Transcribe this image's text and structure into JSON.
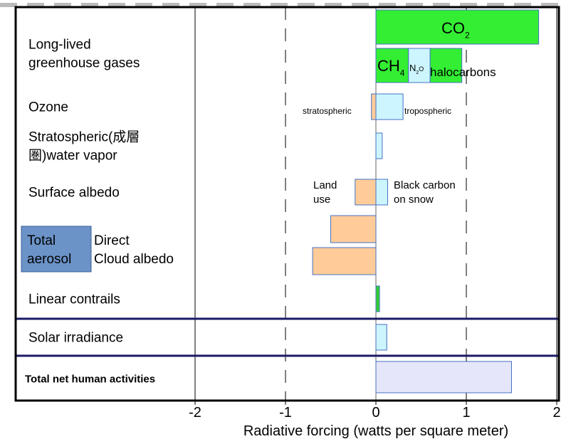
{
  "chart_data": {
    "type": "bar",
    "orientation": "horizontal",
    "xlabel": "Radiative forcing (watts per square meter)",
    "xlim": [
      -2,
      2
    ],
    "xticks": [
      "-2",
      "-1",
      "0",
      "1",
      "2"
    ],
    "x_gridlines": {
      "solid": [
        -2,
        2
      ],
      "dashed": [
        -1,
        1
      ]
    },
    "categories": [
      {
        "label_lines": [
          "Long-lived",
          "greenhouse gases"
        ]
      },
      {
        "label_lines": [
          "Ozone"
        ]
      },
      {
        "label_lines": [
          "Stratospheric(成層",
          "圏)water vapor"
        ]
      },
      {
        "label_lines": [
          "Surface albedo"
        ]
      },
      {
        "label_lines": [
          "Direct",
          "Cloud albedo"
        ],
        "group_label_lines": [
          "Total",
          "aerosol"
        ]
      },
      {
        "label_lines": [
          "Linear contrails"
        ]
      },
      {
        "label_lines": [
          "Solar irradiance"
        ]
      },
      {
        "label_lines": [
          "Total net human activities"
        ],
        "bold": true
      }
    ],
    "bars": [
      {
        "category": 0,
        "start": 0,
        "end": 1.8,
        "color": "#33ee33",
        "label": "CO",
        "sub": "2"
      },
      {
        "category": 0,
        "start": 0,
        "end": 0.36,
        "color": "#33ee33",
        "label": "CH",
        "sub": "4",
        "stack": "lower"
      },
      {
        "category": 0,
        "start": 0.36,
        "end": 0.6,
        "color": "#ccf5ff",
        "label": "N",
        "sub": "2",
        "suffix": "O",
        "stack": "lower"
      },
      {
        "category": 0,
        "start": 0.6,
        "end": 0.95,
        "color": "#33ee33",
        "label": "halocarbons",
        "stack": "lower"
      },
      {
        "category": 1,
        "start": -0.05,
        "end": 0,
        "color": "#ffcc99",
        "label": "stratospheric"
      },
      {
        "category": 1,
        "start": 0,
        "end": 0.3,
        "color": "#ccf5ff",
        "label": "tropospheric"
      },
      {
        "category": 2,
        "start": 0,
        "end": 0.07,
        "color": "#ccf5ff"
      },
      {
        "category": 3,
        "start": -0.23,
        "end": 0,
        "color": "#ffcc99",
        "label_lines": [
          "Land",
          "use"
        ]
      },
      {
        "category": 3,
        "start": 0,
        "end": 0.13,
        "color": "#ccf5ff",
        "label_lines": [
          "Black carbon",
          "on snow"
        ]
      },
      {
        "category": 4,
        "start": -0.5,
        "end": 0,
        "color": "#ffcc99",
        "stack": "upper"
      },
      {
        "category": 4,
        "start": -0.7,
        "end": 0,
        "color": "#ffcc99",
        "stack": "lower"
      },
      {
        "category": 5,
        "start": 0,
        "end": 0.04,
        "color": "#33cc33"
      },
      {
        "category": 6,
        "start": 0,
        "end": 0.12,
        "color": "#ccf5ff"
      },
      {
        "category": 7,
        "start": 0,
        "end": 1.5,
        "color": "#e6e6fa"
      }
    ],
    "colors": {
      "green": "#33ee33",
      "light_blue": "#ccf5ff",
      "orange": "#ffcc99",
      "lavender": "#e6e6fa",
      "aerosol_box": "#6b93c8",
      "separator": "#1a1a66",
      "bar_border": "#4472c4"
    }
  }
}
